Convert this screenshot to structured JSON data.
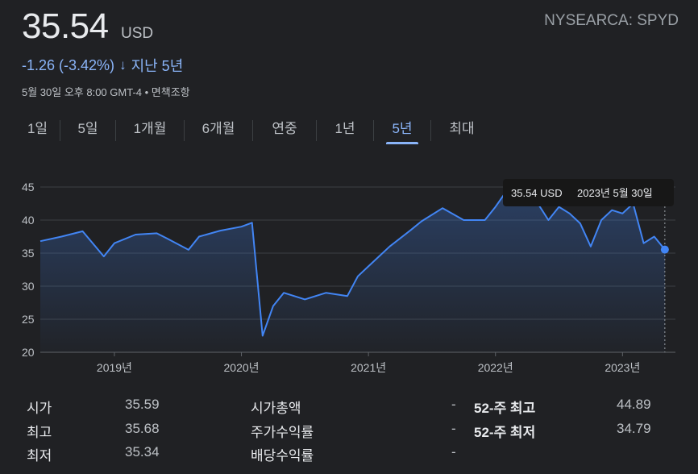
{
  "header": {
    "price": "35.54",
    "currency": "USD",
    "exchange_ticker": "NYSEARCA: SPYD",
    "change": "-1.26 (-3.42%)",
    "change_arrow": "↓",
    "period": "지난 5년",
    "timestamp": "5월 30일 오후 8:00 GMT-4 • 면책조항",
    "accent_color": "#8ab4f8"
  },
  "tabs": [
    {
      "label": "1일",
      "active": false
    },
    {
      "label": "5일",
      "active": false
    },
    {
      "label": "1개월",
      "active": false
    },
    {
      "label": "6개월",
      "active": false
    },
    {
      "label": "연중",
      "active": false
    },
    {
      "label": "1년",
      "active": false
    },
    {
      "label": "5년",
      "active": true
    },
    {
      "label": "최대",
      "active": false
    }
  ],
  "tooltip": {
    "value": "35.54 USD",
    "date": "2023년 5월 30일"
  },
  "chart_data": {
    "type": "area",
    "x_tick_labels": [
      "2019년",
      "2020년",
      "2021년",
      "2022년",
      "2023년"
    ],
    "y_tick_labels": [
      "45",
      "40",
      "35",
      "30",
      "25",
      "20"
    ],
    "ylim": [
      20,
      45
    ],
    "grid": true,
    "line_color": "#4285f4",
    "x": [
      "2018-06",
      "2018-08",
      "2018-10",
      "2018-12",
      "2019-01",
      "2019-03",
      "2019-05",
      "2019-06",
      "2019-08",
      "2019-09",
      "2019-11",
      "2020-01",
      "2020-02",
      "2020-03",
      "2020-04",
      "2020-05",
      "2020-07",
      "2020-09",
      "2020-11",
      "2020-12",
      "2021-01",
      "2021-03",
      "2021-05",
      "2021-06",
      "2021-08",
      "2021-10",
      "2021-12",
      "2022-01",
      "2022-02",
      "2022-03",
      "2022-05",
      "2022-06",
      "2022-07",
      "2022-08",
      "2022-09",
      "2022-10",
      "2022-11",
      "2022-12",
      "2023-01",
      "2023-02",
      "2023-03",
      "2023-04",
      "2023-05"
    ],
    "values": [
      36.8,
      37.5,
      38.3,
      34.5,
      36.5,
      37.8,
      38.0,
      37.2,
      35.5,
      37.5,
      38.4,
      39.0,
      39.6,
      22.5,
      27.0,
      29.0,
      28.0,
      29.0,
      28.5,
      31.5,
      33.0,
      36.0,
      38.5,
      39.8,
      41.8,
      40.0,
      40.0,
      42.0,
      44.3,
      43.5,
      42.5,
      40.0,
      42.0,
      41.0,
      39.5,
      36.0,
      40.0,
      41.5,
      41.0,
      42.5,
      36.5,
      37.5,
      35.54
    ],
    "area_fill": true
  },
  "stats": {
    "col1": [
      {
        "label": "시가",
        "value": "35.59"
      },
      {
        "label": "최고",
        "value": "35.68"
      },
      {
        "label": "최저",
        "value": "35.34"
      }
    ],
    "col2": [
      {
        "label": "시가총액",
        "value": "-"
      },
      {
        "label": "주가수익률",
        "value": "-"
      },
      {
        "label": "배당수익률",
        "value": "-"
      }
    ],
    "col3": [
      {
        "label": "52-주 최고",
        "value": "44.89"
      },
      {
        "label": "52-주 최저",
        "value": "34.79"
      }
    ]
  }
}
